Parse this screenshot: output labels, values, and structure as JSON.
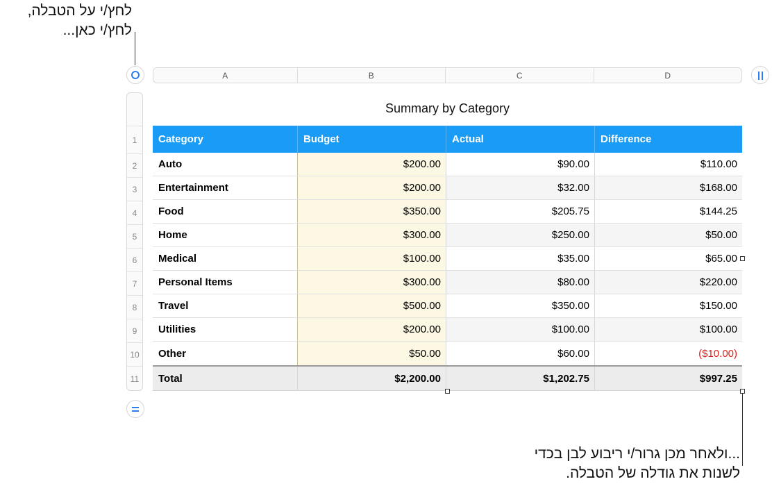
{
  "callouts": {
    "top": {
      "line1": "לחץ/י על הטבלה,",
      "line2": "לחץ/י כאן..."
    },
    "bottom": {
      "line1": "...ולאחר מכן גרור/י ריבוע לבן בכדי",
      "line2": "לשנות את גודלה של הטבלה."
    }
  },
  "column_headers": [
    "A",
    "B",
    "C",
    "D"
  ],
  "row_numbers": [
    "1",
    "2",
    "3",
    "4",
    "5",
    "6",
    "7",
    "8",
    "9",
    "10",
    "11"
  ],
  "table": {
    "title": "Summary by Category",
    "header": [
      "Category",
      "Budget",
      "Actual",
      "Difference"
    ],
    "rows": [
      [
        "Auto",
        "$200.00",
        "$90.00",
        "$110.00"
      ],
      [
        "Entertainment",
        "$200.00",
        "$32.00",
        "$168.00"
      ],
      [
        "Food",
        "$350.00",
        "$205.75",
        "$144.25"
      ],
      [
        "Home",
        "$300.00",
        "$250.00",
        "$50.00"
      ],
      [
        "Medical",
        "$100.00",
        "$35.00",
        "$65.00"
      ],
      [
        "Personal Items",
        "$300.00",
        "$80.00",
        "$220.00"
      ],
      [
        "Travel",
        "$500.00",
        "$350.00",
        "$150.00"
      ],
      [
        "Utilities",
        "$200.00",
        "$100.00",
        "$100.00"
      ],
      [
        "Other",
        "$50.00",
        "$60.00",
        "($10.00)"
      ]
    ],
    "total": [
      "Total",
      "$2,200.00",
      "$1,202.75",
      "$997.25"
    ]
  },
  "colors": {
    "header_fill": "#1a9bf5",
    "budget_column_fill": "#fdf8e3",
    "negative_value": "#e0201c",
    "control_accent": "#2b7df2",
    "total_fill": "#ececec"
  },
  "icons": {
    "select_table": "select-table-circle-icon",
    "add_column": "pause-bars-icon",
    "add_row": "equals-icon"
  }
}
